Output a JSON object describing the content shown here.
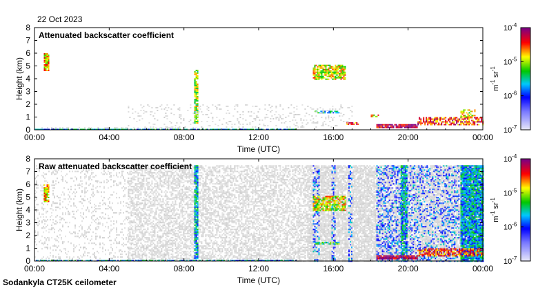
{
  "header": {
    "date": "22 Oct 2023"
  },
  "footer": {
    "instrument": "Sodankyla CT25K ceilometer"
  },
  "chart_data": [
    {
      "type": "heatmap",
      "title": "Attenuated backscatter coefficient",
      "xlabel": "Time (UTC)",
      "ylabel": "Height (km)",
      "x_ticks": [
        "00:00",
        "04:00",
        "08:00",
        "12:00",
        "16:00",
        "20:00",
        "00:00"
      ],
      "xlim_hours": [
        0,
        24
      ],
      "y_ticks": [
        "0",
        "1",
        "2",
        "3",
        "4",
        "5",
        "6",
        "7",
        "8"
      ],
      "ylim": [
        0,
        8
      ],
      "colorbar": {
        "scale": "log",
        "range": [
          1e-07,
          0.0001
        ],
        "ticks": [
          {
            "base": "10",
            "exp": "-7"
          },
          {
            "base": "10",
            "exp": "-6"
          },
          {
            "base": "10",
            "exp": "-5"
          },
          {
            "base": "10",
            "exp": "-4"
          }
        ],
        "unit": {
          "m": "m",
          "m_exp": "-1",
          "sr": "sr",
          "sr_exp": "-1"
        }
      },
      "features": [
        {
          "t0": 0.0,
          "t1": 3.0,
          "h0": 0.0,
          "h1": 0.2,
          "level": 0.15,
          "density": 0.35,
          "kind": "grey"
        },
        {
          "t0": 3.0,
          "t1": 9.0,
          "h0": 0.0,
          "h1": 0.2,
          "level": 0.2,
          "density": 0.4,
          "kind": "grey"
        },
        {
          "t0": 0.5,
          "t1": 0.75,
          "h0": 4.7,
          "h1": 6.0,
          "level": 0.75,
          "density": 0.9,
          "kind": "signal"
        },
        {
          "t0": 8.55,
          "t1": 8.7,
          "h0": 0.5,
          "h1": 4.7,
          "level": 0.65,
          "density": 0.9,
          "kind": "signal"
        },
        {
          "t0": 14.9,
          "t1": 16.6,
          "h0": 4.0,
          "h1": 5.1,
          "level": 0.7,
          "density": 0.75,
          "kind": "signal"
        },
        {
          "t0": 15.0,
          "t1": 16.3,
          "h0": 1.3,
          "h1": 1.5,
          "level": 0.5,
          "density": 0.7,
          "kind": "signal"
        },
        {
          "t0": 16.7,
          "t1": 17.3,
          "h0": 0.4,
          "h1": 0.6,
          "level": 0.85,
          "density": 0.8,
          "kind": "signal"
        },
        {
          "t0": 18.0,
          "t1": 18.4,
          "h0": 1.0,
          "h1": 1.2,
          "level": 0.75,
          "density": 0.7,
          "kind": "signal"
        },
        {
          "t0": 18.3,
          "t1": 20.5,
          "h0": 0.15,
          "h1": 0.45,
          "level": 0.95,
          "density": 0.9,
          "kind": "signal"
        },
        {
          "t0": 20.5,
          "t1": 24.0,
          "h0": 0.4,
          "h1": 1.0,
          "level": 0.85,
          "density": 0.7,
          "kind": "signal"
        },
        {
          "t0": 22.8,
          "t1": 23.6,
          "h0": 1.0,
          "h1": 1.6,
          "level": 0.7,
          "density": 0.5,
          "kind": "signal"
        },
        {
          "t0": 0.0,
          "t1": 14.0,
          "h0": 0.0,
          "h1": 0.08,
          "level": 0.45,
          "density": 0.8,
          "kind": "signal"
        },
        {
          "t0": 5.0,
          "t1": 17.0,
          "h0": 0.2,
          "h1": 2.0,
          "level": 0.12,
          "density": 0.12,
          "kind": "grey"
        }
      ]
    },
    {
      "type": "heatmap",
      "title": "Raw attenuated backscatter coefficient",
      "xlabel": "Time (UTC)",
      "ylabel": "Height (km)",
      "x_ticks": [
        "00:00",
        "04:00",
        "08:00",
        "12:00",
        "16:00",
        "20:00",
        "00:00"
      ],
      "xlim_hours": [
        0,
        24
      ],
      "y_ticks": [
        "0",
        "1",
        "2",
        "3",
        "4",
        "5",
        "6",
        "7",
        "8"
      ],
      "ylim": [
        0,
        8
      ],
      "colorbar": {
        "scale": "log",
        "range": [
          1e-07,
          0.0001
        ],
        "ticks": [
          {
            "base": "10",
            "exp": "-7"
          },
          {
            "base": "10",
            "exp": "-6"
          },
          {
            "base": "10",
            "exp": "-5"
          },
          {
            "base": "10",
            "exp": "-4"
          }
        ],
        "unit": {
          "m": "m",
          "m_exp": "-1",
          "sr": "sr",
          "sr_exp": "-1"
        }
      },
      "features": [
        {
          "t0": 0.0,
          "t1": 5.0,
          "h0": 0.0,
          "h1": 7.5,
          "level": 0.1,
          "density": 0.18,
          "kind": "grey"
        },
        {
          "t0": 5.0,
          "t1": 14.6,
          "h0": 0.0,
          "h1": 7.5,
          "level": 0.1,
          "density": 0.55,
          "kind": "grey"
        },
        {
          "t0": 14.6,
          "t1": 24.0,
          "h0": 0.0,
          "h1": 7.5,
          "level": 0.1,
          "density": 0.8,
          "kind": "grey"
        },
        {
          "t0": 14.9,
          "t1": 15.2,
          "h0": 0.0,
          "h1": 7.5,
          "level": 0.35,
          "density": 0.3,
          "kind": "signal"
        },
        {
          "t0": 15.9,
          "t1": 16.1,
          "h0": 0.0,
          "h1": 7.5,
          "level": 0.35,
          "density": 0.3,
          "kind": "signal"
        },
        {
          "t0": 16.8,
          "t1": 17.0,
          "h0": 0.0,
          "h1": 7.5,
          "level": 0.35,
          "density": 0.3,
          "kind": "signal"
        },
        {
          "t0": 18.3,
          "t1": 19.6,
          "h0": 0.0,
          "h1": 7.5,
          "level": 0.35,
          "density": 0.35,
          "kind": "signal"
        },
        {
          "t0": 19.6,
          "t1": 19.95,
          "h0": 0.0,
          "h1": 7.5,
          "level": 0.45,
          "density": 0.9,
          "kind": "signal"
        },
        {
          "t0": 19.95,
          "t1": 22.7,
          "h0": 0.0,
          "h1": 7.5,
          "level": 0.35,
          "density": 0.25,
          "kind": "signal"
        },
        {
          "t0": 22.8,
          "t1": 24.0,
          "h0": 0.0,
          "h1": 7.5,
          "level": 0.45,
          "density": 0.95,
          "kind": "signal"
        },
        {
          "t0": 0.5,
          "t1": 0.75,
          "h0": 4.7,
          "h1": 6.0,
          "level": 0.75,
          "density": 0.9,
          "kind": "signal"
        },
        {
          "t0": 8.55,
          "t1": 8.7,
          "h0": 0.2,
          "h1": 7.5,
          "level": 0.45,
          "density": 0.85,
          "kind": "signal"
        },
        {
          "t0": 14.9,
          "t1": 16.6,
          "h0": 4.0,
          "h1": 5.1,
          "level": 0.7,
          "density": 0.75,
          "kind": "signal"
        },
        {
          "t0": 15.0,
          "t1": 16.3,
          "h0": 1.3,
          "h1": 1.5,
          "level": 0.55,
          "density": 0.7,
          "kind": "signal"
        },
        {
          "t0": 18.3,
          "t1": 20.5,
          "h0": 0.15,
          "h1": 0.45,
          "level": 0.95,
          "density": 0.9,
          "kind": "signal"
        },
        {
          "t0": 20.5,
          "t1": 24.0,
          "h0": 0.4,
          "h1": 1.0,
          "level": 0.85,
          "density": 0.7,
          "kind": "signal"
        },
        {
          "t0": 0.0,
          "t1": 14.0,
          "h0": 0.0,
          "h1": 0.08,
          "level": 0.45,
          "density": 0.8,
          "kind": "signal"
        }
      ]
    }
  ]
}
